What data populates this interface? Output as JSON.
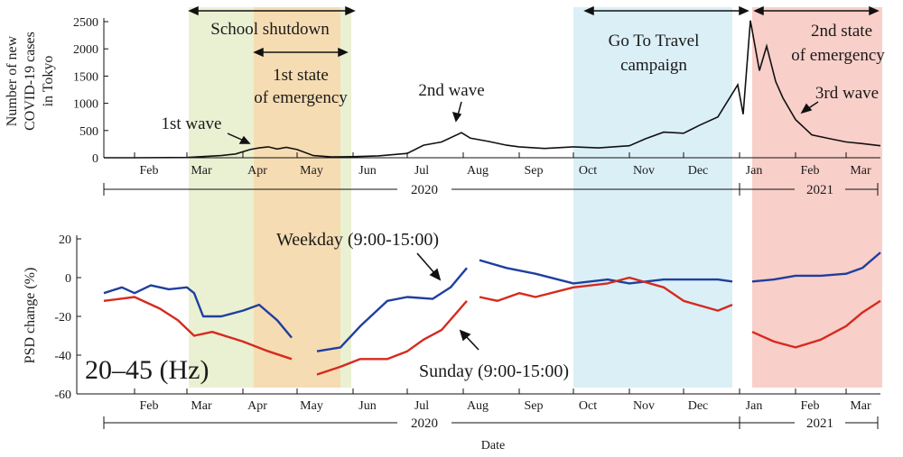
{
  "chart_data": [
    {
      "type": "line",
      "ylabel": "Number of new COVID-19 cases in Tokyo",
      "ylabel_lines": [
        "Number of new",
        "COVID-19 cases",
        "in Tokyo"
      ],
      "ylim": [
        0,
        2500
      ],
      "yticks": [
        0,
        500,
        1000,
        1500,
        2000,
        2500
      ],
      "x_start": "2020-01-15",
      "x_end": "2021-03-20",
      "x": [
        "2020-01-15",
        "2020-02-01",
        "2020-03-01",
        "2020-03-20",
        "2020-03-28",
        "2020-04-05",
        "2020-04-10",
        "2020-04-15",
        "2020-04-20",
        "2020-04-25",
        "2020-05-01",
        "2020-05-10",
        "2020-05-20",
        "2020-06-01",
        "2020-06-15",
        "2020-07-01",
        "2020-07-10",
        "2020-07-20",
        "2020-07-31",
        "2020-08-05",
        "2020-08-15",
        "2020-08-25",
        "2020-09-01",
        "2020-09-15",
        "2020-10-01",
        "2020-10-15",
        "2020-11-01",
        "2020-11-10",
        "2020-11-20",
        "2020-12-01",
        "2020-12-10",
        "2020-12-20",
        "2020-12-31",
        "2021-01-03",
        "2021-01-07",
        "2021-01-12",
        "2021-01-16",
        "2021-01-21",
        "2021-01-25",
        "2021-02-01",
        "2021-02-10",
        "2021-02-20",
        "2021-03-01",
        "2021-03-10",
        "2021-03-20"
      ],
      "y": [
        0,
        0,
        5,
        40,
        70,
        150,
        180,
        200,
        160,
        190,
        150,
        40,
        15,
        20,
        35,
        80,
        230,
        290,
        460,
        360,
        300,
        230,
        200,
        170,
        200,
        180,
        220,
        350,
        470,
        450,
        600,
        750,
        1340,
        800,
        2520,
        1600,
        2050,
        1400,
        1100,
        700,
        420,
        350,
        290,
        260,
        220
      ],
      "months": [
        "Feb",
        "Mar",
        "Apr",
        "May",
        "Jun",
        "Jul",
        "Aug",
        "Sep",
        "Oct",
        "Nov",
        "Dec",
        "Jan",
        "Feb",
        "Mar"
      ],
      "years": [
        "2020",
        "2021"
      ],
      "shaded_periods": [
        {
          "label": "School shutdown",
          "start": "2020-03-02",
          "end": "2020-05-31",
          "color": "#eaf0d2"
        },
        {
          "label": "1st state of emergency",
          "start": "2020-04-07",
          "end": "2020-05-25",
          "color": "#f6dcb2"
        },
        {
          "label": "Go To Travel campaign",
          "start": "2020-10-01",
          "end": "2020-12-28",
          "color": "#dbeff7"
        },
        {
          "label": "2nd state of emergency",
          "start": "2021-01-08",
          "end": "2021-03-21",
          "color": "#f9cfc9"
        }
      ],
      "annotations": {
        "school_shutdown": "School shutdown",
        "emergency1_line1": "1st state",
        "emergency1_line2": "of emergency",
        "gototravel_line1": "Go To Travel",
        "gototravel_line2": "campaign",
        "emergency2_line1": "2nd state",
        "emergency2_line2": "of emergency",
        "wave1": "1st wave",
        "wave2": "2nd wave",
        "wave3": "3rd wave"
      }
    },
    {
      "type": "line",
      "ylabel": "PSD change (%)",
      "xlabel": "Date",
      "ylim": [
        -60,
        20
      ],
      "yticks": [
        -60,
        -40,
        -20,
        0,
        20
      ],
      "band_label": "20–45 (Hz)",
      "series": [
        {
          "name": "Weekday (9:00-15:00)",
          "color": "#1f3f9e",
          "segments": [
            {
              "x": [
                "2020-01-15",
                "2020-01-25",
                "2020-02-01",
                "2020-02-10",
                "2020-02-20",
                "2020-03-01",
                "2020-03-05",
                "2020-03-10",
                "2020-03-20",
                "2020-04-01",
                "2020-04-10",
                "2020-04-20",
                "2020-04-28"
              ],
              "y": [
                -8,
                -5,
                -8,
                -4,
                -6,
                -5,
                -8,
                -20,
                -20,
                -17,
                -14,
                -22,
                -31
              ]
            },
            {
              "x": [
                "2020-05-12",
                "2020-05-25",
                "2020-06-05",
                "2020-06-20",
                "2020-07-01",
                "2020-07-15",
                "2020-07-25",
                "2020-08-03"
              ],
              "y": [
                -38,
                -36,
                -25,
                -12,
                -10,
                -11,
                -5,
                5
              ]
            },
            {
              "x": [
                "2020-08-10",
                "2020-08-25",
                "2020-09-10",
                "2020-10-01",
                "2020-10-20",
                "2020-11-01",
                "2020-11-20",
                "2020-12-01",
                "2020-12-20",
                "2020-12-28"
              ],
              "y": [
                9,
                5,
                2,
                -3,
                -1,
                -3,
                -1,
                -1,
                -1,
                -2
              ]
            },
            {
              "x": [
                "2021-01-08",
                "2021-01-20",
                "2021-02-01",
                "2021-02-15",
                "2021-03-01",
                "2021-03-10",
                "2021-03-20"
              ],
              "y": [
                -2,
                -1,
                1,
                1,
                2,
                5,
                13
              ]
            }
          ]
        },
        {
          "name": "Sunday (9:00-15:00)",
          "color": "#d62a1e",
          "segments": [
            {
              "x": [
                "2020-01-15",
                "2020-02-01",
                "2020-02-15",
                "2020-02-25",
                "2020-03-05",
                "2020-03-15",
                "2020-04-01",
                "2020-04-15",
                "2020-04-28"
              ],
              "y": [
                -12,
                -10,
                -16,
                -22,
                -30,
                -28,
                -33,
                -38,
                -42
              ]
            },
            {
              "x": [
                "2020-05-12",
                "2020-05-25",
                "2020-06-05",
                "2020-06-20",
                "2020-07-01",
                "2020-07-10",
                "2020-07-20",
                "2020-08-03"
              ],
              "y": [
                -50,
                -46,
                -42,
                -42,
                -38,
                -32,
                -27,
                -12
              ]
            },
            {
              "x": [
                "2020-08-10",
                "2020-08-20",
                "2020-09-01",
                "2020-09-10",
                "2020-10-01",
                "2020-10-20",
                "2020-11-01",
                "2020-11-20",
                "2020-12-01",
                "2020-12-20",
                "2020-12-28"
              ],
              "y": [
                -10,
                -12,
                -8,
                -10,
                -5,
                -3,
                0,
                -5,
                -12,
                -17,
                -14
              ]
            },
            {
              "x": [
                "2021-01-08",
                "2021-01-20",
                "2021-02-01",
                "2021-02-15",
                "2021-03-01",
                "2021-03-10",
                "2021-03-20"
              ],
              "y": [
                -28,
                -33,
                -36,
                -32,
                -25,
                -18,
                -12
              ]
            }
          ]
        }
      ],
      "months": [
        "Feb",
        "Mar",
        "Apr",
        "May",
        "Jun",
        "Jul",
        "Aug",
        "Sep",
        "Oct",
        "Nov",
        "Dec",
        "Jan",
        "Feb",
        "Mar"
      ],
      "years": [
        "2020",
        "2021"
      ]
    }
  ]
}
